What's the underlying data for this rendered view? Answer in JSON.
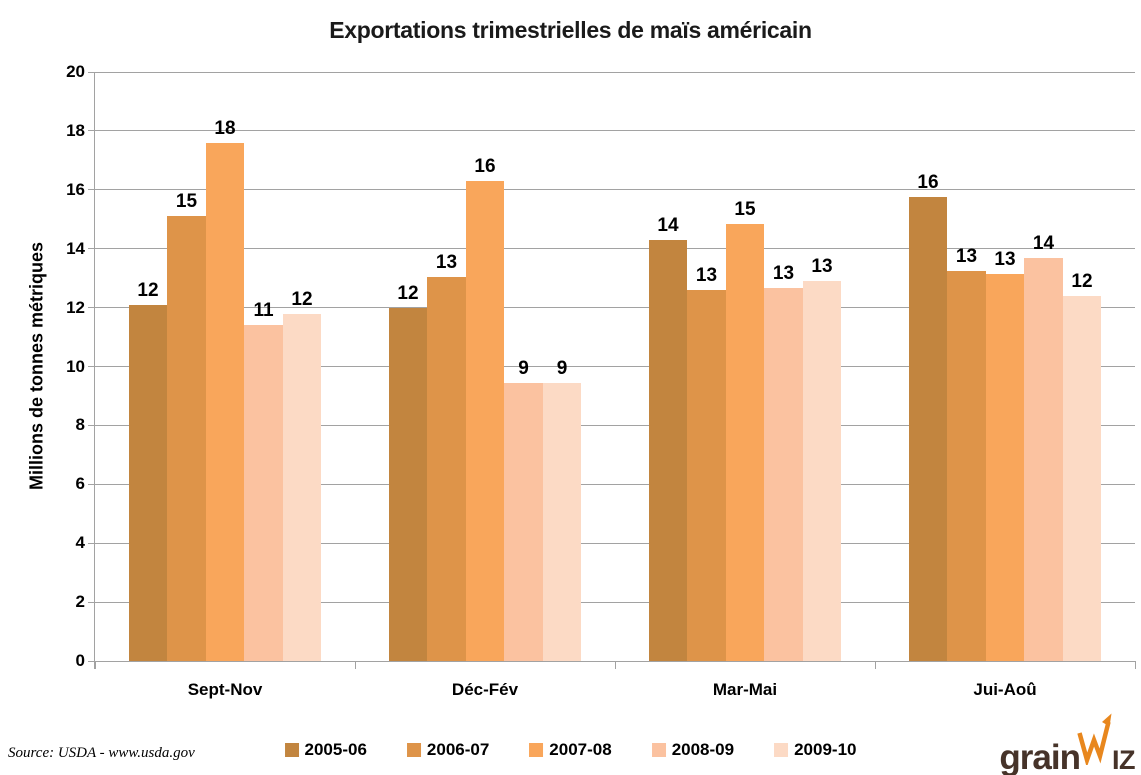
{
  "chart_data": {
    "type": "bar",
    "title": "Exportations trimestrielles de maïs américain",
    "xlabel": "",
    "ylabel": "Millions de tonnes métriques",
    "ylim": [
      0,
      20
    ],
    "ytick_step": 2,
    "grid": "horizontal",
    "legend_position": "bottom",
    "categories": [
      "Sept-Nov",
      "Déc-Fév",
      "Mar-Mai",
      "Jui-Aoû"
    ],
    "series": [
      {
        "name": "2005-06",
        "color": "#C2853F",
        "values": [
          12.1,
          12.0,
          14.3,
          15.75
        ],
        "labels": [
          "12",
          "12",
          "14",
          "16"
        ]
      },
      {
        "name": "2006-07",
        "color": "#DE9449",
        "values": [
          15.1,
          13.05,
          12.6,
          13.25
        ],
        "labels": [
          "15",
          "13",
          "13",
          "13"
        ]
      },
      {
        "name": "2007-08",
        "color": "#F9A65B",
        "values": [
          17.6,
          16.3,
          14.85,
          13.15
        ],
        "labels": [
          "18",
          "16",
          "15",
          "13"
        ]
      },
      {
        "name": "2008-09",
        "color": "#FBC2A0",
        "values": [
          11.4,
          9.45,
          12.65,
          13.7
        ],
        "labels": [
          "11",
          "9",
          "13",
          "14"
        ]
      },
      {
        "name": "2009-10",
        "color": "#FCDAC5",
        "values": [
          11.8,
          9.45,
          12.9,
          12.4
        ],
        "labels": [
          "12",
          "9",
          "13",
          "12"
        ]
      }
    ]
  },
  "footer": {
    "source": "Source: USDA - www.usda.gov",
    "logo": {
      "part1": "grain",
      "part2": "IZ",
      "text_color": "#463329",
      "accent_color": "#E8871E"
    }
  },
  "colors": {
    "gridline": "#A2A2A2",
    "axis": "#A2A2A2",
    "text": "#000000",
    "background": "#FFFFFF"
  }
}
